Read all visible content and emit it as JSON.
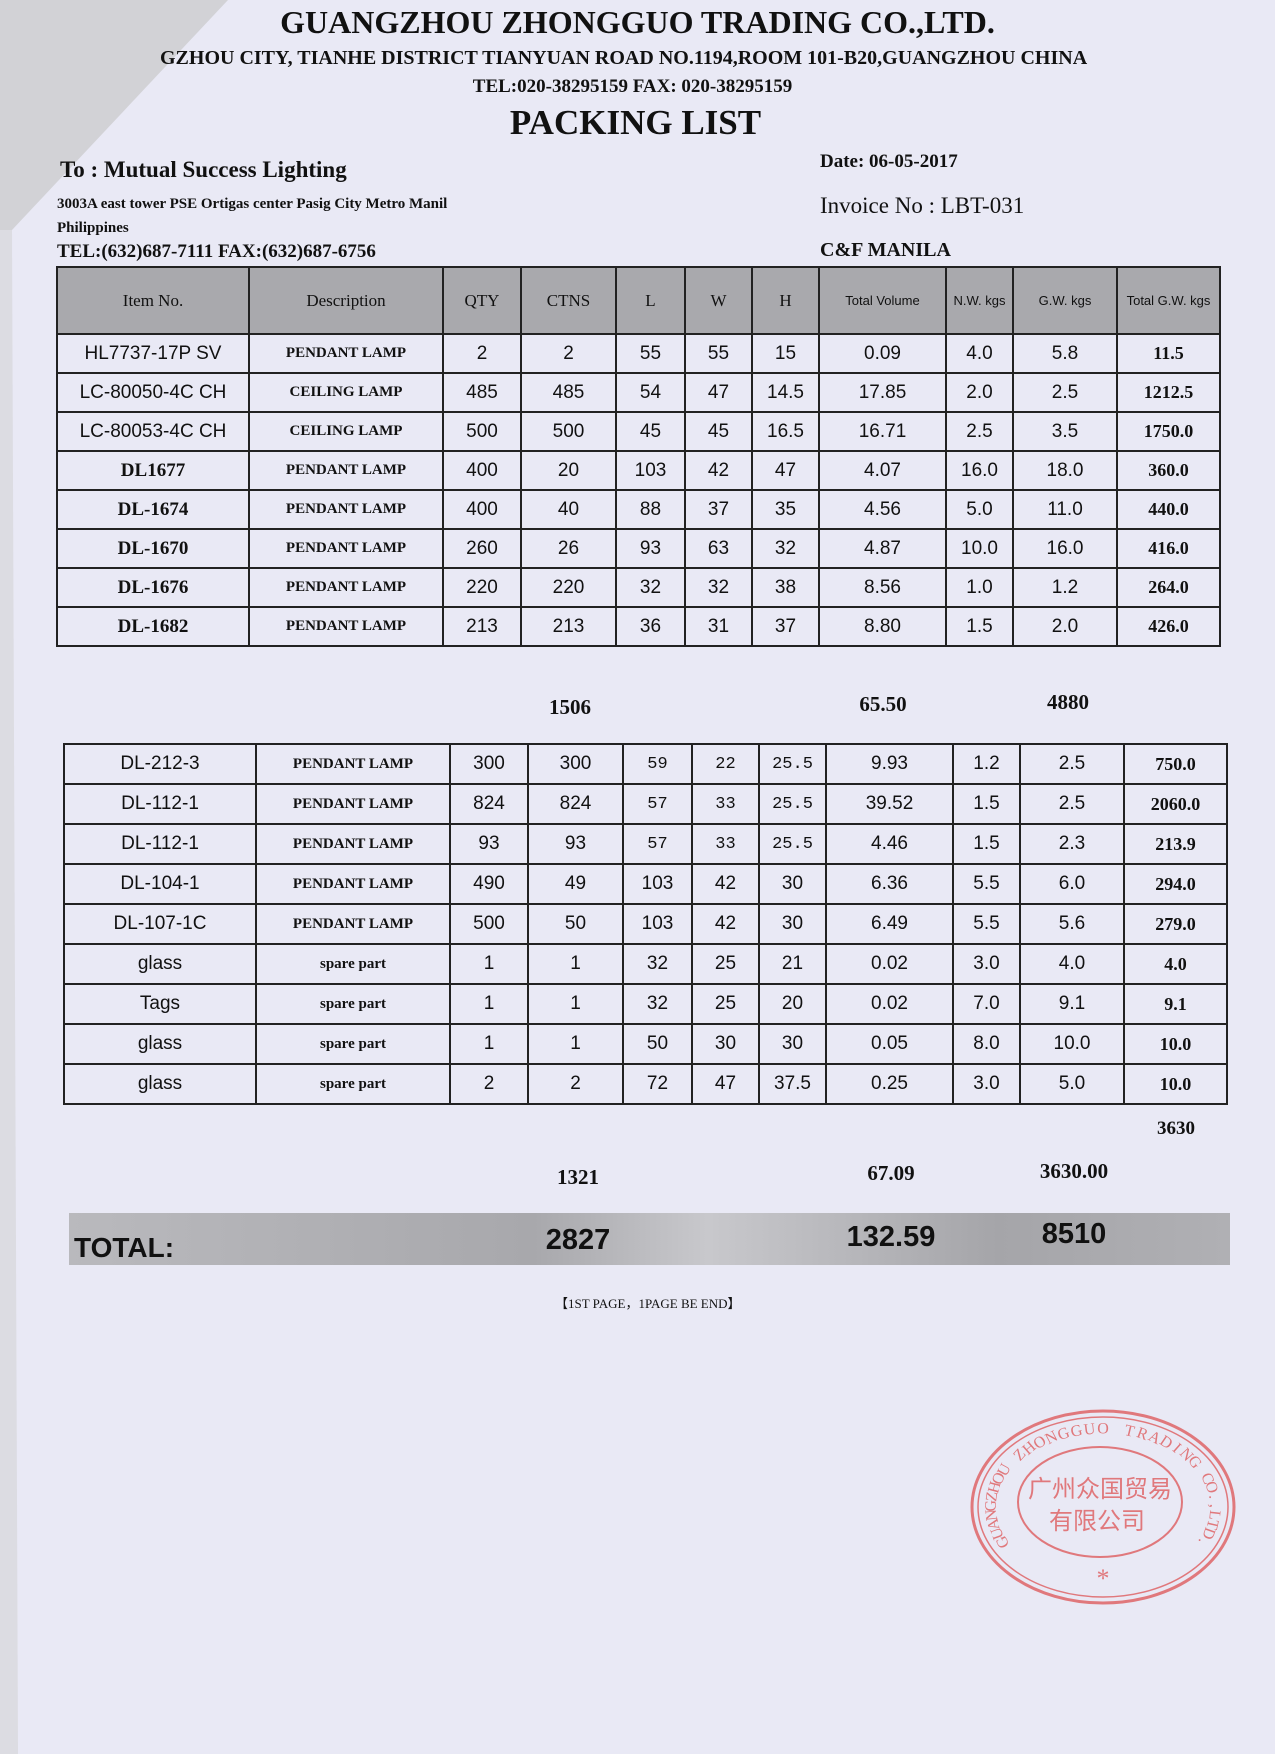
{
  "company": {
    "name": "GUANGZHOU ZHONGGUO TRADING CO.,LTD.",
    "address": "GZHOU CITY, TIANHE DISTRICT TIANYUAN ROAD NO.1194,ROOM 101-B20,GUANGZHOU CHINA",
    "contact": "TEL:020-38295159 FAX: 020-38295159"
  },
  "doc_title": "PACKING LIST",
  "to": {
    "name": "To : Mutual Success Lighting",
    "address_line1": "3003A east tower PSE Ortigas center Pasig City Metro Manil",
    "address_line2": "Philippines",
    "contact": "TEL:(632)687-7111  FAX:(632)687-6756"
  },
  "date": "Date: 06-05-2017",
  "invoice": "Invoice No : LBT-031",
  "terms": "C&F MANILA",
  "columns": [
    "Item No.",
    "Description",
    "QTY",
    "CTNS",
    "L",
    "W",
    "H",
    "Total Volume",
    "N.W. kgs",
    "G.W. kgs",
    "Total G.W. kgs"
  ],
  "table1": [
    [
      "HL7737-17P   SV",
      "PENDANT LAMP",
      "2",
      "2",
      "55",
      "55",
      "15",
      "0.09",
      "4.0",
      "5.8",
      "11.5"
    ],
    [
      "LC-80050-4C  CH",
      "CEILING LAMP",
      "485",
      "485",
      "54",
      "47",
      "14.5",
      "17.85",
      "2.0",
      "2.5",
      "1212.5"
    ],
    [
      "LC-80053-4C  CH",
      "CEILING LAMP",
      "500",
      "500",
      "45",
      "45",
      "16.5",
      "16.71",
      "2.5",
      "3.5",
      "1750.0"
    ],
    [
      "DL1677",
      "PENDANT LAMP",
      "400",
      "20",
      "103",
      "42",
      "47",
      "4.07",
      "16.0",
      "18.0",
      "360.0"
    ],
    [
      "DL-1674",
      "PENDANT LAMP",
      "400",
      "40",
      "88",
      "37",
      "35",
      "4.56",
      "5.0",
      "11.0",
      "440.0"
    ],
    [
      "DL-1670",
      "PENDANT LAMP",
      "260",
      "26",
      "93",
      "63",
      "32",
      "4.87",
      "10.0",
      "16.0",
      "416.0"
    ],
    [
      "DL-1676",
      "PENDANT LAMP",
      "220",
      "220",
      "32",
      "32",
      "38",
      "8.56",
      "1.0",
      "1.2",
      "264.0"
    ],
    [
      "DL-1682",
      "PENDANT LAMP",
      "213",
      "213",
      "36",
      "31",
      "37",
      "8.80",
      "1.5",
      "2.0",
      "426.0"
    ]
  ],
  "subtotal1": {
    "ctns": "1506",
    "volume": "65.50",
    "gw": "4880"
  },
  "table2": [
    [
      "DL-212-3",
      "PENDANT LAMP",
      "300",
      "300",
      "59",
      "22",
      "25.5",
      "9.93",
      "1.2",
      "2.5",
      "750.0"
    ],
    [
      "DL-112-1",
      "PENDANT LAMP",
      "824",
      "824",
      "57",
      "33",
      "25.5",
      "39.52",
      "1.5",
      "2.5",
      "2060.0"
    ],
    [
      "DL-112-1",
      "PENDANT LAMP",
      "93",
      "93",
      "57",
      "33",
      "25.5",
      "4.46",
      "1.5",
      "2.3",
      "213.9"
    ],
    [
      "DL-104-1",
      "PENDANT LAMP",
      "490",
      "49",
      "103",
      "42",
      "30",
      "6.36",
      "5.5",
      "6.0",
      "294.0"
    ],
    [
      "DL-107-1C",
      "PENDANT LAMP",
      "500",
      "50",
      "103",
      "42",
      "30",
      "6.49",
      "5.5",
      "5.6",
      "279.0"
    ],
    [
      "glass",
      "spare part",
      "1",
      "1",
      "32",
      "25",
      "21",
      "0.02",
      "3.0",
      "4.0",
      "4.0"
    ],
    [
      "Tags",
      "spare part",
      "1",
      "1",
      "32",
      "25",
      "20",
      "0.02",
      "7.0",
      "9.1",
      "9.1"
    ],
    [
      "glass",
      "spare part",
      "1",
      "1",
      "50",
      "30",
      "30",
      "0.05",
      "8.0",
      "10.0",
      "10.0"
    ],
    [
      "glass",
      "spare part",
      "2",
      "2",
      "72",
      "47",
      "37.5",
      "0.25",
      "3.0",
      "5.0",
      "10.0"
    ]
  ],
  "subtotal2": {
    "gw_note": "3630",
    "ctns": "1321",
    "volume": "67.09",
    "gw": "3630.00"
  },
  "total": {
    "label": "TOTAL:",
    "ctns": "2827",
    "volume": "132.59",
    "gw": "8510"
  },
  "footer": "【1ST PAGE，1PAGE BE END】",
  "stamp": {
    "outer": "GUANGZHOU ZHONGGUO TRADING CO.,LTD.",
    "inner_line1": "广州众国贸易",
    "inner_line2": "有限公司",
    "color": "#e0787c"
  }
}
